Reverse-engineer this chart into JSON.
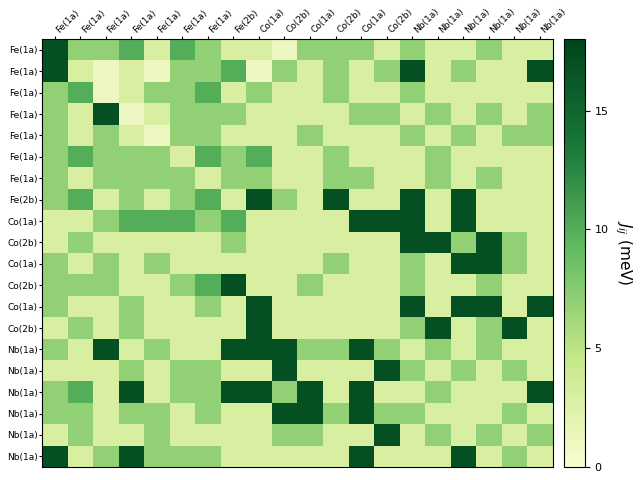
{
  "row_labels": [
    "Fe(1a)",
    "Fe(1a)",
    "Fe(1a)",
    "Fe(1a)",
    "Fe(1a)",
    "Fe(1a)",
    "Fe(1a)",
    "Fe(2b)",
    "Co(1a)",
    "Co(2b)",
    "Co(1a)",
    "Co(2b)",
    "Co(1a)",
    "Co(2b)",
    "Nb(1a)",
    "Nb(1a)",
    "Nb(1a)",
    "Nb(1a)",
    "Nb(1a)",
    "Nb(1a)"
  ],
  "col_labels": [
    "Fe(1a)",
    "Fe(1a)",
    "Fe(1a)",
    "Fe(1a)",
    "Fe(1a)",
    "Fe(1a)",
    "Fe(1a)",
    "Fe(2b)",
    "Co(1a)",
    "Co(2b)",
    "Co(1a)",
    "Co(2b)",
    "Co(1a)",
    "Co(2b)",
    "Nb(1a)",
    "Nb(1a)",
    "Nb(1a)",
    "Nb(1a)",
    "Nb(1a)",
    "Nb(1a)"
  ],
  "vmin": 0,
  "vmax": 18,
  "cbar_ticks": [
    0,
    5,
    10,
    15
  ],
  "cbar_label": "$J_{ij}$ (meV)",
  "data": [
    [
      17,
      7,
      7,
      10,
      3,
      10,
      7,
      3,
      3,
      1,
      7,
      7,
      7,
      3,
      7,
      3,
      3,
      7,
      3,
      3
    ],
    [
      17,
      3,
      1,
      3,
      1,
      7,
      7,
      10,
      1,
      7,
      3,
      7,
      3,
      7,
      17,
      3,
      7,
      3,
      3,
      17
    ],
    [
      7,
      10,
      1,
      3,
      7,
      7,
      10,
      3,
      7,
      3,
      3,
      7,
      3,
      3,
      7,
      3,
      3,
      3,
      3,
      3
    ],
    [
      7,
      3,
      17,
      1,
      3,
      7,
      7,
      7,
      3,
      3,
      3,
      3,
      7,
      7,
      3,
      7,
      3,
      7,
      3,
      7
    ],
    [
      7,
      3,
      7,
      3,
      1,
      7,
      7,
      3,
      3,
      3,
      7,
      3,
      3,
      3,
      7,
      3,
      7,
      3,
      7,
      7
    ],
    [
      7,
      10,
      7,
      7,
      7,
      3,
      10,
      7,
      10,
      3,
      3,
      7,
      3,
      3,
      3,
      7,
      3,
      3,
      3,
      3
    ],
    [
      7,
      3,
      7,
      7,
      7,
      7,
      3,
      7,
      7,
      3,
      3,
      7,
      7,
      3,
      3,
      7,
      3,
      7,
      3,
      3
    ],
    [
      7,
      10,
      3,
      7,
      3,
      7,
      10,
      3,
      17,
      7,
      3,
      17,
      3,
      3,
      17,
      3,
      17,
      3,
      3,
      3
    ],
    [
      3,
      3,
      7,
      10,
      10,
      10,
      7,
      10,
      3,
      3,
      3,
      3,
      17,
      17,
      17,
      3,
      17,
      3,
      3,
      3
    ],
    [
      3,
      7,
      3,
      3,
      3,
      3,
      3,
      7,
      3,
      3,
      3,
      3,
      3,
      3,
      17,
      17,
      7,
      17,
      7,
      3
    ],
    [
      7,
      3,
      7,
      3,
      7,
      3,
      3,
      3,
      3,
      3,
      3,
      7,
      3,
      3,
      7,
      3,
      17,
      17,
      7,
      3
    ],
    [
      7,
      7,
      7,
      3,
      3,
      7,
      10,
      17,
      3,
      3,
      7,
      3,
      3,
      3,
      7,
      3,
      3,
      7,
      3,
      3
    ],
    [
      7,
      3,
      3,
      7,
      3,
      3,
      7,
      3,
      17,
      3,
      3,
      3,
      3,
      3,
      17,
      3,
      17,
      17,
      3,
      17
    ],
    [
      3,
      7,
      3,
      7,
      3,
      3,
      3,
      3,
      17,
      3,
      3,
      3,
      3,
      3,
      7,
      17,
      3,
      7,
      17,
      3
    ],
    [
      7,
      3,
      17,
      3,
      7,
      3,
      3,
      17,
      17,
      17,
      7,
      7,
      17,
      7,
      3,
      7,
      3,
      7,
      3,
      3
    ],
    [
      3,
      3,
      3,
      7,
      3,
      7,
      7,
      3,
      3,
      17,
      3,
      3,
      3,
      17,
      7,
      3,
      7,
      3,
      7,
      3
    ],
    [
      7,
      10,
      3,
      17,
      3,
      7,
      7,
      17,
      17,
      7,
      17,
      3,
      17,
      3,
      3,
      7,
      3,
      3,
      3,
      17
    ],
    [
      7,
      7,
      3,
      7,
      7,
      3,
      7,
      3,
      3,
      17,
      17,
      7,
      17,
      7,
      7,
      3,
      3,
      3,
      7,
      3
    ],
    [
      3,
      7,
      3,
      3,
      7,
      3,
      3,
      3,
      3,
      7,
      7,
      3,
      3,
      17,
      3,
      7,
      3,
      7,
      3,
      7
    ],
    [
      17,
      3,
      7,
      17,
      7,
      7,
      7,
      3,
      3,
      3,
      3,
      3,
      17,
      3,
      3,
      3,
      17,
      3,
      7,
      3
    ]
  ]
}
